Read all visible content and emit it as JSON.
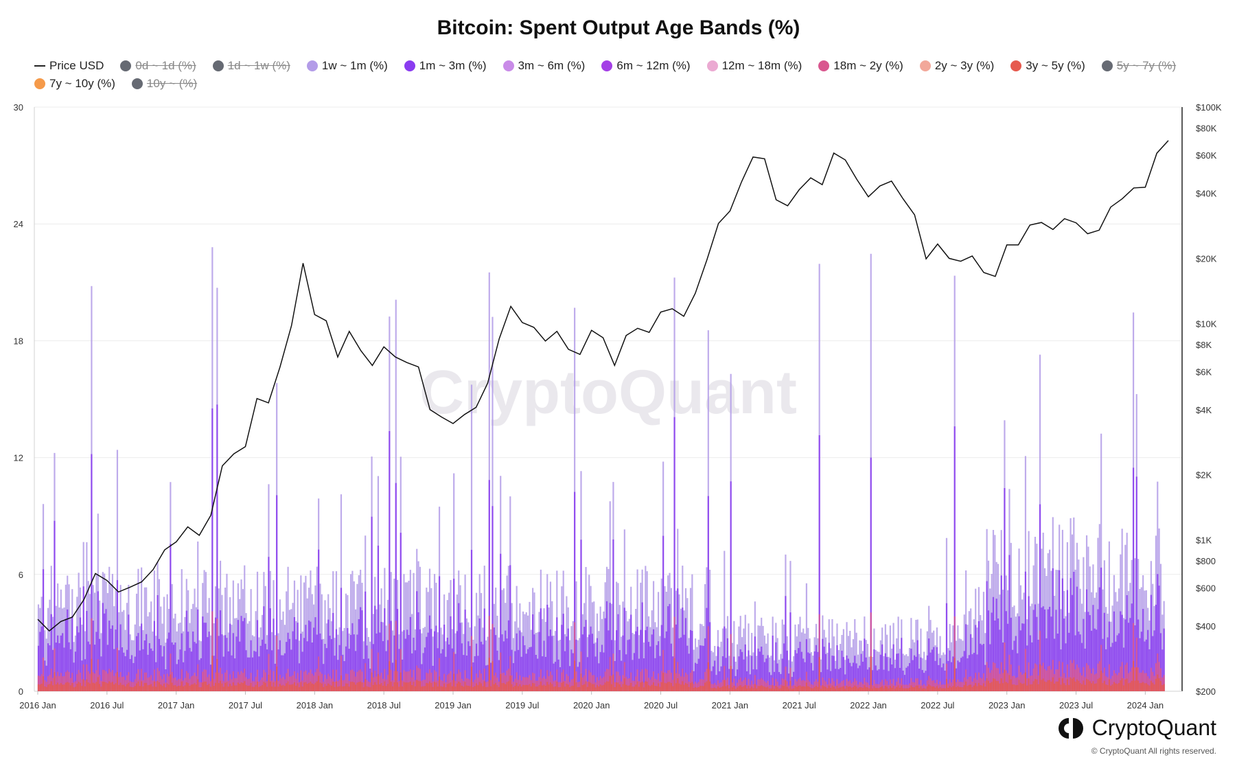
{
  "chart_data": {
    "type": "area",
    "title": "Bitcoin: Spent Output Age Bands (%)",
    "legend_position": "top-left",
    "price_series_name": "Price USD",
    "series": [
      {
        "name": "Price USD",
        "color": "#222222",
        "hidden": false,
        "kind": "line"
      },
      {
        "name": "0d ~ 1d (%)",
        "color": "#666a73",
        "hidden": true
      },
      {
        "name": "1d ~ 1w (%)",
        "color": "#666a73",
        "hidden": true
      },
      {
        "name": "1w ~ 1m (%)",
        "color": "#b39ce8",
        "hidden": false
      },
      {
        "name": "1m ~ 3m (%)",
        "color": "#8a3cf0",
        "hidden": false
      },
      {
        "name": "3m ~ 6m (%)",
        "color": "#c98be8",
        "hidden": false
      },
      {
        "name": "6m ~ 12m (%)",
        "color": "#a43fe6",
        "hidden": false
      },
      {
        "name": "12m ~ 18m (%)",
        "color": "#ebaad2",
        "hidden": false
      },
      {
        "name": "18m ~ 2y (%)",
        "color": "#d9578f",
        "hidden": false
      },
      {
        "name": "2y ~ 3y (%)",
        "color": "#f2a89a",
        "hidden": false
      },
      {
        "name": "3y ~ 5y (%)",
        "color": "#e65a4e",
        "hidden": false
      },
      {
        "name": "5y ~ 7y (%)",
        "color": "#666a73",
        "hidden": true
      },
      {
        "name": "7y ~ 10y (%)",
        "color": "#f59a4a",
        "hidden": false
      },
      {
        "name": "10y ~ (%)",
        "color": "#666a73",
        "hidden": true
      }
    ],
    "x_ticks": [
      "2016 Jan",
      "2016 Jul",
      "2017 Jan",
      "2017 Jul",
      "2018 Jan",
      "2018 Jul",
      "2019 Jan",
      "2019 Jul",
      "2020 Jan",
      "2020 Jul",
      "2021 Jan",
      "2021 Jul",
      "2022 Jan",
      "2022 Jul",
      "2023 Jan",
      "2023 Jul",
      "2024 Jan"
    ],
    "x_range": [
      "2016-01",
      "2024-03"
    ],
    "y_left_ticks": [
      "0",
      "6",
      "12",
      "18",
      "24",
      "30"
    ],
    "y_left_range": [
      0,
      30
    ],
    "y_right_ticks": [
      "$200",
      "$400",
      "$600",
      "$800",
      "$1K",
      "$2K",
      "$4K",
      "$6K",
      "$8K",
      "$10K",
      "$20K",
      "$40K",
      "$60K",
      "$80K",
      "$100K"
    ],
    "y_right_values": [
      200,
      400,
      600,
      800,
      1000,
      2000,
      4000,
      6000,
      8000,
      10000,
      20000,
      40000,
      60000,
      80000,
      100000
    ],
    "y_right_range": [
      200,
      100000
    ],
    "y_right_scale": "log",
    "grid": true,
    "price_points": [
      [
        "2016-01",
        430
      ],
      [
        "2016-02",
        380
      ],
      [
        "2016-03",
        420
      ],
      [
        "2016-04",
        440
      ],
      [
        "2016-05",
        530
      ],
      [
        "2016-06",
        700
      ],
      [
        "2016-07",
        650
      ],
      [
        "2016-08",
        575
      ],
      [
        "2016-09",
        605
      ],
      [
        "2016-10",
        640
      ],
      [
        "2016-11",
        730
      ],
      [
        "2016-12",
        900
      ],
      [
        "2017-01",
        980
      ],
      [
        "2017-02",
        1150
      ],
      [
        "2017-03",
        1050
      ],
      [
        "2017-04",
        1300
      ],
      [
        "2017-05",
        2200
      ],
      [
        "2017-06",
        2500
      ],
      [
        "2017-07",
        2700
      ],
      [
        "2017-08",
        4500
      ],
      [
        "2017-09",
        4300
      ],
      [
        "2017-10",
        6300
      ],
      [
        "2017-11",
        9800
      ],
      [
        "2017-12",
        19000
      ],
      [
        "2018-01",
        11000
      ],
      [
        "2018-02",
        10300
      ],
      [
        "2018-03",
        7000
      ],
      [
        "2018-04",
        9200
      ],
      [
        "2018-05",
        7500
      ],
      [
        "2018-06",
        6400
      ],
      [
        "2018-07",
        7800
      ],
      [
        "2018-08",
        7000
      ],
      [
        "2018-09",
        6600
      ],
      [
        "2018-10",
        6300
      ],
      [
        "2018-11",
        4000
      ],
      [
        "2018-12",
        3700
      ],
      [
        "2019-01",
        3450
      ],
      [
        "2019-02",
        3800
      ],
      [
        "2019-03",
        4100
      ],
      [
        "2019-04",
        5300
      ],
      [
        "2019-05",
        8500
      ],
      [
        "2019-06",
        12000
      ],
      [
        "2019-07",
        10100
      ],
      [
        "2019-08",
        9600
      ],
      [
        "2019-09",
        8300
      ],
      [
        "2019-10",
        9200
      ],
      [
        "2019-11",
        7600
      ],
      [
        "2019-12",
        7200
      ],
      [
        "2020-01",
        9300
      ],
      [
        "2020-02",
        8600
      ],
      [
        "2020-03",
        6400
      ],
      [
        "2020-04",
        8800
      ],
      [
        "2020-05",
        9500
      ],
      [
        "2020-06",
        9100
      ],
      [
        "2020-07",
        11300
      ],
      [
        "2020-08",
        11700
      ],
      [
        "2020-09",
        10800
      ],
      [
        "2020-10",
        13800
      ],
      [
        "2020-11",
        19700
      ],
      [
        "2020-12",
        29000
      ],
      [
        "2021-01",
        33100
      ],
      [
        "2021-02",
        45100
      ],
      [
        "2021-03",
        58800
      ],
      [
        "2021-04",
        57700
      ],
      [
        "2021-05",
        37300
      ],
      [
        "2021-06",
        35000
      ],
      [
        "2021-07",
        41500
      ],
      [
        "2021-08",
        47100
      ],
      [
        "2021-09",
        43800
      ],
      [
        "2021-10",
        61300
      ],
      [
        "2021-11",
        57000
      ],
      [
        "2021-12",
        46300
      ],
      [
        "2022-01",
        38500
      ],
      [
        "2022-02",
        43200
      ],
      [
        "2022-03",
        45500
      ],
      [
        "2022-04",
        37700
      ],
      [
        "2022-05",
        31800
      ],
      [
        "2022-06",
        19900
      ],
      [
        "2022-07",
        23300
      ],
      [
        "2022-08",
        20000
      ],
      [
        "2022-09",
        19400
      ],
      [
        "2022-10",
        20500
      ],
      [
        "2022-11",
        17200
      ],
      [
        "2022-12",
        16500
      ],
      [
        "2023-01",
        23100
      ],
      [
        "2023-02",
        23100
      ],
      [
        "2023-03",
        28500
      ],
      [
        "2023-04",
        29300
      ],
      [
        "2023-05",
        27200
      ],
      [
        "2023-06",
        30500
      ],
      [
        "2023-07",
        29200
      ],
      [
        "2023-08",
        26000
      ],
      [
        "2023-09",
        27000
      ],
      [
        "2023-10",
        34500
      ],
      [
        "2023-11",
        37700
      ],
      [
        "2023-12",
        42300
      ],
      [
        "2024-01",
        42600
      ],
      [
        "2024-02",
        61200
      ],
      [
        "2024-03",
        70000
      ]
    ]
  },
  "branding": {
    "name": "CryptoQuant",
    "watermark": "CryptoQuant",
    "copyright": "© CryptoQuant All rights reserved."
  }
}
